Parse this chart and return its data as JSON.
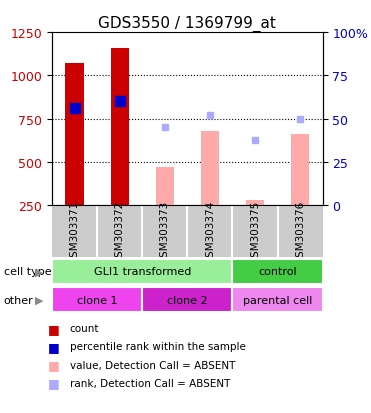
{
  "title": "GDS3550 / 1369799_at",
  "samples": [
    "GSM303371",
    "GSM303372",
    "GSM303373",
    "GSM303374",
    "GSM303375",
    "GSM303376"
  ],
  "count_values": [
    1070,
    1160,
    null,
    null,
    null,
    null
  ],
  "count_color": "#cc0000",
  "percentile_values": [
    810,
    850,
    null,
    null,
    null,
    null
  ],
  "percentile_color": "#0000cc",
  "absent_value_values": [
    null,
    null,
    470,
    680,
    280,
    660
  ],
  "absent_value_color": "#ffaaaa",
  "absent_rank_values": [
    null,
    null,
    700,
    770,
    630,
    750
  ],
  "absent_rank_color": "#aaaaff",
  "ylim_left": [
    250,
    1250
  ],
  "ylim_right": [
    0,
    100
  ],
  "yticks_left": [
    250,
    500,
    750,
    1000,
    1250
  ],
  "yticks_right": [
    0,
    25,
    50,
    75,
    100
  ],
  "cell_type_groups": [
    {
      "label": "GLI1 transformed",
      "start": 0,
      "end": 4,
      "color": "#99ee99"
    },
    {
      "label": "control",
      "start": 4,
      "end": 6,
      "color": "#44cc44"
    }
  ],
  "other_groups": [
    {
      "label": "clone 1",
      "start": 0,
      "end": 2,
      "color": "#ee44ee"
    },
    {
      "label": "clone 2",
      "start": 2,
      "end": 4,
      "color": "#cc22cc"
    },
    {
      "label": "parental cell",
      "start": 4,
      "end": 6,
      "color": "#ee88ee"
    }
  ],
  "cell_type_label": "cell type",
  "other_label": "other",
  "legend_items": [
    {
      "label": "count",
      "color": "#cc0000"
    },
    {
      "label": "percentile rank within the sample",
      "color": "#0000cc"
    },
    {
      "label": "value, Detection Call = ABSENT",
      "color": "#ffaaaa"
    },
    {
      "label": "rank, Detection Call = ABSENT",
      "color": "#aaaaff"
    }
  ],
  "bar_width": 0.4,
  "marker_size": 7,
  "bg_color_plot": "#ffffff",
  "bg_color_sample": "#cccccc",
  "title_fontsize": 11,
  "tick_fontsize": 9,
  "label_fontsize": 8
}
